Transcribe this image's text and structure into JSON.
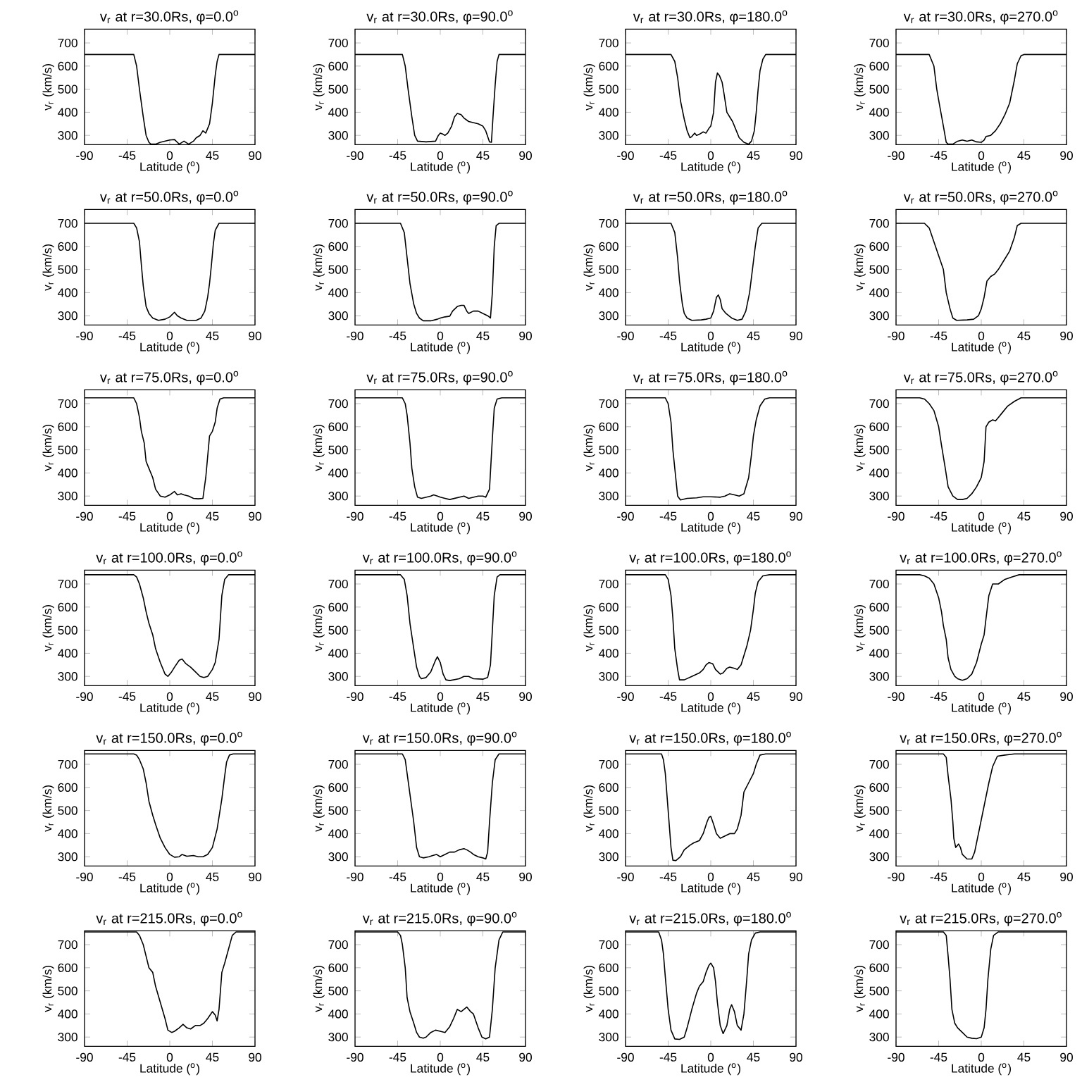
{
  "chart_data": [
    {
      "type": "line",
      "title": "v$_{r}$ at r=30.0Rs, φ=0.0$^{o}$",
      "xlabel": "Latitude ($^{o}$)",
      "ylabel": "v$_{r}$ (km/s)",
      "color": "#000000",
      "xlim": [
        -90,
        90
      ],
      "ylim": [
        260,
        760
      ],
      "xticks": [
        -90,
        -45,
        0,
        45,
        90
      ],
      "yticks": [
        300,
        400,
        500,
        600,
        700
      ],
      "x": [
        -90,
        -38,
        -35,
        -32,
        -28,
        -25,
        -22,
        -20,
        -15,
        -10,
        -5,
        0,
        5,
        8,
        10,
        15,
        20,
        25,
        28,
        32,
        35,
        38,
        40,
        42,
        45,
        48,
        50,
        52,
        90
      ],
      "values": [
        650,
        650,
        600,
        500,
        380,
        300,
        270,
        262,
        262,
        270,
        275,
        280,
        282,
        270,
        262,
        275,
        262,
        275,
        290,
        300,
        320,
        310,
        330,
        350,
        440,
        560,
        620,
        650,
        650
      ]
    },
    {
      "type": "line",
      "title": "v$_{r}$ at r=30.0Rs, φ=90.0$^{o}$",
      "xlabel": "Latitude ($^{o}$)",
      "ylabel": "v$_{r}$ (km/s)",
      "color": "#000000",
      "xlim": [
        -90,
        90
      ],
      "ylim": [
        260,
        760
      ],
      "xticks": [
        -90,
        -45,
        0,
        45,
        90
      ],
      "yticks": [
        300,
        400,
        500,
        600,
        700
      ],
      "x": [
        -90,
        -40,
        -37,
        -34,
        -30,
        -27,
        -24,
        -15,
        -5,
        -2,
        0,
        3,
        5,
        8,
        12,
        15,
        18,
        22,
        25,
        30,
        35,
        40,
        45,
        48,
        52,
        54,
        56,
        58,
        60,
        62,
        90
      ],
      "values": [
        650,
        650,
        600,
        500,
        380,
        300,
        275,
        272,
        275,
        300,
        310,
        305,
        300,
        310,
        340,
        380,
        395,
        390,
        375,
        360,
        355,
        350,
        340,
        320,
        272,
        270,
        400,
        520,
        620,
        650,
        650
      ]
    },
    {
      "type": "line",
      "title": "v$_{r}$ at r=30.0Rs, φ=180.0$^{o}$",
      "xlabel": "Latitude ($^{o}$)",
      "ylabel": "v$_{r}$ (km/s)",
      "color": "#000000",
      "xlim": [
        -90,
        90
      ],
      "ylim": [
        260,
        760
      ],
      "xticks": [
        -90,
        -45,
        0,
        45,
        90
      ],
      "yticks": [
        300,
        400,
        500,
        600,
        700
      ],
      "x": [
        -90,
        -42,
        -38,
        -35,
        -32,
        -28,
        -25,
        -22,
        -20,
        -17,
        -15,
        -12,
        -8,
        -5,
        -2,
        0,
        3,
        5,
        7,
        9,
        12,
        14,
        17,
        20,
        23,
        27,
        30,
        35,
        40,
        43,
        46,
        48,
        50,
        52,
        55,
        58,
        90
      ],
      "values": [
        650,
        650,
        620,
        550,
        450,
        370,
        320,
        290,
        295,
        310,
        300,
        305,
        315,
        310,
        330,
        340,
        400,
        530,
        570,
        560,
        530,
        480,
        400,
        380,
        360,
        320,
        290,
        270,
        262,
        275,
        320,
        400,
        500,
        580,
        630,
        650,
        650
      ]
    },
    {
      "type": "line",
      "title": "v$_{r}$ at r=30.0Rs, φ=270.0$^{o}$",
      "xlabel": "Latitude ($^{o}$)",
      "ylabel": "v$_{r}$ (km/s)",
      "color": "#000000",
      "xlim": [
        -90,
        90
      ],
      "ylim": [
        260,
        760
      ],
      "xticks": [
        -90,
        -45,
        0,
        45,
        90
      ],
      "yticks": [
        300,
        400,
        500,
        600,
        700
      ],
      "x": [
        -90,
        -55,
        -52,
        -50,
        -47,
        -44,
        -40,
        -37,
        -35,
        -30,
        -25,
        -20,
        -15,
        -10,
        -5,
        0,
        3,
        5,
        10,
        15,
        20,
        25,
        30,
        35,
        38,
        42,
        45,
        90
      ],
      "values": [
        650,
        650,
        620,
        600,
        500,
        430,
        340,
        270,
        262,
        262,
        275,
        280,
        275,
        280,
        272,
        270,
        280,
        295,
        300,
        320,
        350,
        390,
        440,
        540,
        610,
        645,
        650,
        650
      ]
    },
    {
      "type": "line",
      "title": "v$_{r}$ at r=50.0Rs, φ=0.0$^{o}$",
      "xlabel": "Latitude ($^{o}$)",
      "ylabel": "v$_{r}$ (km/s)",
      "color": "#000000",
      "xlim": [
        -90,
        90
      ],
      "ylim": [
        260,
        760
      ],
      "xticks": [
        -90,
        -45,
        0,
        45,
        90
      ],
      "yticks": [
        300,
        400,
        500,
        600,
        700
      ],
      "x": [
        -90,
        -38,
        -35,
        -32,
        -30,
        -28,
        -25,
        -22,
        -18,
        -12,
        -5,
        0,
        5,
        8,
        12,
        18,
        28,
        33,
        37,
        40,
        42,
        44,
        46,
        48,
        52,
        90
      ],
      "values": [
        700,
        700,
        680,
        620,
        520,
        430,
        340,
        310,
        290,
        280,
        285,
        295,
        315,
        300,
        290,
        280,
        280,
        290,
        320,
        380,
        440,
        520,
        610,
        670,
        700,
        700
      ]
    },
    {
      "type": "line",
      "title": "v$_{r}$ at r=50.0Rs, φ=90.0$^{o}$",
      "xlabel": "Latitude ($^{o}$)",
      "ylabel": "v$_{r}$ (km/s)",
      "color": "#000000",
      "xlim": [
        -90,
        90
      ],
      "ylim": [
        260,
        760
      ],
      "xticks": [
        -90,
        -45,
        0,
        45,
        90
      ],
      "yticks": [
        300,
        400,
        500,
        600,
        700
      ],
      "x": [
        -90,
        -42,
        -38,
        -35,
        -32,
        -28,
        -25,
        -22,
        -18,
        -10,
        -3,
        0,
        5,
        10,
        13,
        18,
        22,
        25,
        28,
        30,
        35,
        40,
        45,
        50,
        53,
        55,
        57,
        59,
        62,
        90
      ],
      "values": [
        700,
        700,
        660,
        550,
        440,
        350,
        310,
        290,
        278,
        278,
        285,
        290,
        295,
        298,
        320,
        340,
        345,
        345,
        320,
        310,
        320,
        320,
        310,
        300,
        290,
        400,
        600,
        690,
        700,
        700
      ]
    },
    {
      "type": "line",
      "title": "v$_{r}$ at r=50.0Rs, φ=180.0$^{o}$",
      "xlabel": "Latitude ($^{o}$)",
      "ylabel": "v$_{r}$ (km/s)",
      "color": "#000000",
      "xlim": [
        -90,
        90
      ],
      "ylim": [
        260,
        760
      ],
      "xticks": [
        -90,
        -45,
        0,
        45,
        90
      ],
      "yticks": [
        300,
        400,
        500,
        600,
        700
      ],
      "x": [
        -90,
        -42,
        -38,
        -35,
        -33,
        -30,
        -28,
        -25,
        -20,
        -10,
        -5,
        0,
        3,
        6,
        8,
        10,
        12,
        16,
        22,
        28,
        33,
        37,
        41,
        44,
        47,
        50,
        54,
        90
      ],
      "values": [
        700,
        700,
        660,
        550,
        450,
        350,
        310,
        290,
        280,
        282,
        285,
        290,
        320,
        380,
        390,
        370,
        330,
        310,
        290,
        280,
        285,
        320,
        400,
        500,
        600,
        680,
        700,
        700
      ]
    },
    {
      "type": "line",
      "title": "v$_{r}$ at r=50.0Rs, φ=270.0$^{o}$",
      "xlabel": "Latitude ($^{o}$)",
      "ylabel": "v$_{r}$ (km/s)",
      "color": "#000000",
      "xlim": [
        -90,
        90
      ],
      "ylim": [
        260,
        760
      ],
      "xticks": [
        -90,
        -45,
        0,
        45,
        90
      ],
      "yticks": [
        300,
        400,
        500,
        600,
        700
      ],
      "x": [
        -90,
        -60,
        -55,
        -50,
        -45,
        -40,
        -37,
        -33,
        -30,
        -26,
        -15,
        -8,
        -3,
        0,
        3,
        6,
        10,
        14,
        18,
        24,
        30,
        35,
        38,
        42,
        90
      ],
      "values": [
        700,
        700,
        680,
        620,
        560,
        500,
        400,
        330,
        290,
        280,
        282,
        285,
        300,
        330,
        380,
        450,
        470,
        480,
        500,
        540,
        580,
        640,
        690,
        700,
        700
      ]
    },
    {
      "type": "line",
      "title": "v$_{r}$ at r=75.0Rs, φ=0.0$^{o}$",
      "xlabel": "Latitude ($^{o}$)",
      "ylabel": "v$_{r}$ (km/s)",
      "color": "#000000",
      "xlim": [
        -90,
        90
      ],
      "ylim": [
        260,
        760
      ],
      "xticks": [
        -90,
        -45,
        0,
        45,
        90
      ],
      "yticks": [
        300,
        400,
        500,
        600,
        700
      ],
      "x": [
        -90,
        -38,
        -35,
        -32,
        -30,
        -27,
        -25,
        -22,
        -18,
        -15,
        -10,
        -5,
        0,
        5,
        8,
        12,
        15,
        20,
        25,
        30,
        35,
        38,
        40,
        42,
        45,
        48,
        50,
        53,
        57,
        90
      ],
      "values": [
        725,
        725,
        700,
        640,
        580,
        530,
        450,
        420,
        380,
        330,
        300,
        295,
        305,
        320,
        305,
        310,
        305,
        300,
        290,
        288,
        290,
        380,
        470,
        560,
        580,
        620,
        680,
        720,
        725,
        725
      ]
    },
    {
      "type": "line",
      "title": "v$_{r}$ at r=75.0Rs, φ=90.0$^{o}$",
      "xlabel": "Latitude ($^{o}$)",
      "ylabel": "v$_{r}$ (km/s)",
      "color": "#000000",
      "xlim": [
        -90,
        90
      ],
      "ylim": [
        260,
        760
      ],
      "xticks": [
        -90,
        -45,
        0,
        45,
        90
      ],
      "yticks": [
        300,
        400,
        500,
        600,
        700
      ],
      "x": [
        -90,
        -40,
        -37,
        -35,
        -32,
        -30,
        -27,
        -24,
        -20,
        -15,
        -10,
        -7,
        -3,
        0,
        5,
        10,
        15,
        20,
        25,
        30,
        35,
        40,
        45,
        48,
        52,
        55,
        57,
        60,
        65,
        90
      ],
      "values": [
        725,
        725,
        700,
        650,
        530,
        420,
        340,
        295,
        290,
        295,
        300,
        305,
        300,
        295,
        290,
        285,
        290,
        295,
        300,
        290,
        295,
        300,
        300,
        295,
        330,
        550,
        680,
        720,
        725,
        725
      ]
    },
    {
      "type": "line",
      "title": "v$_{r}$ at r=75.0Rs, φ=180.0$^{o}$",
      "xlabel": "Latitude ($^{o}$)",
      "ylabel": "v$_{r}$ (km/s)",
      "color": "#000000",
      "xlim": [
        -90,
        90
      ],
      "ylim": [
        260,
        760
      ],
      "xticks": [
        -90,
        -45,
        0,
        45,
        90
      ],
      "yticks": [
        300,
        400,
        500,
        600,
        700
      ],
      "x": [
        -90,
        -48,
        -45,
        -42,
        -40,
        -37,
        -35,
        -32,
        -25,
        -15,
        -8,
        0,
        10,
        15,
        20,
        25,
        30,
        35,
        40,
        43,
        45,
        48,
        52,
        57,
        62,
        90
      ],
      "values": [
        725,
        725,
        700,
        620,
        500,
        380,
        300,
        283,
        290,
        292,
        297,
        297,
        295,
        300,
        310,
        305,
        300,
        310,
        380,
        480,
        560,
        630,
        690,
        720,
        725,
        725
      ]
    },
    {
      "type": "line",
      "title": "v$_{r}$ at r=75.0Rs, φ=270.0$^{o}$",
      "xlabel": "Latitude ($^{o}$)",
      "ylabel": "v$_{r}$ (km/s)",
      "color": "#000000",
      "xlim": [
        -90,
        90
      ],
      "ylim": [
        260,
        760
      ],
      "xticks": [
        -90,
        -45,
        0,
        45,
        90
      ],
      "yticks": [
        300,
        400,
        500,
        600,
        700
      ],
      "x": [
        -90,
        -65,
        -60,
        -55,
        -50,
        -45,
        -42,
        -38,
        -35,
        -30,
        -25,
        -20,
        -15,
        -10,
        -5,
        0,
        3,
        5,
        8,
        12,
        15,
        18,
        22,
        28,
        35,
        42,
        90
      ],
      "values": [
        725,
        725,
        720,
        700,
        670,
        600,
        520,
        420,
        340,
        300,
        285,
        285,
        290,
        310,
        340,
        380,
        450,
        600,
        620,
        630,
        625,
        640,
        660,
        690,
        710,
        725,
        725
      ]
    },
    {
      "type": "line",
      "title": "v$_{r}$ at r=100.0Rs, φ=0.0$^{o}$",
      "xlabel": "Latitude ($^{o}$)",
      "ylabel": "v$_{r}$ (km/s)",
      "color": "#000000",
      "xlim": [
        -90,
        90
      ],
      "ylim": [
        260,
        760
      ],
      "xticks": [
        -90,
        -45,
        0,
        45,
        90
      ],
      "yticks": [
        300,
        400,
        500,
        600,
        700
      ],
      "x": [
        -90,
        -38,
        -35,
        -32,
        -28,
        -25,
        -22,
        -18,
        -15,
        -10,
        -5,
        -2,
        2,
        5,
        10,
        13,
        17,
        22,
        27,
        32,
        36,
        40,
        45,
        48,
        52,
        55,
        58,
        62,
        90
      ],
      "values": [
        740,
        740,
        730,
        700,
        640,
        580,
        530,
        480,
        420,
        360,
        310,
        300,
        320,
        340,
        370,
        375,
        355,
        340,
        320,
        300,
        295,
        300,
        330,
        360,
        460,
        650,
        720,
        740,
        740
      ]
    },
    {
      "type": "line",
      "title": "v$_{r}$ at r=100.0Rs, φ=90.0$^{o}$",
      "xlabel": "Latitude ($^{o}$)",
      "ylabel": "v$_{r}$ (km/s)",
      "color": "#000000",
      "xlim": [
        -90,
        90
      ],
      "ylim": [
        260,
        760
      ],
      "xticks": [
        -90,
        -45,
        0,
        45,
        90
      ],
      "yticks": [
        300,
        400,
        500,
        600,
        700
      ],
      "x": [
        -90,
        -42,
        -38,
        -35,
        -32,
        -28,
        -25,
        -22,
        -20,
        -15,
        -10,
        -5,
        -3,
        0,
        3,
        6,
        10,
        20,
        25,
        30,
        35,
        45,
        50,
        53,
        55,
        57,
        60,
        63,
        90
      ],
      "values": [
        740,
        740,
        720,
        650,
        530,
        420,
        340,
        300,
        290,
        295,
        320,
        370,
        385,
        360,
        310,
        285,
        282,
        290,
        300,
        300,
        290,
        288,
        295,
        350,
        500,
        650,
        730,
        740,
        740
      ]
    },
    {
      "type": "line",
      "title": "v$_{r}$ at r=100.0Rs, φ=180.0$^{o}$",
      "xlabel": "Latitude ($^{o}$)",
      "ylabel": "v$_{r}$ (km/s)",
      "color": "#000000",
      "xlim": [
        -90,
        90
      ],
      "ylim": [
        260,
        760
      ],
      "xticks": [
        -90,
        -45,
        0,
        45,
        90
      ],
      "yticks": [
        300,
        400,
        500,
        600,
        700
      ],
      "x": [
        -90,
        -48,
        -45,
        -42,
        -40,
        -38,
        -35,
        -33,
        -28,
        -20,
        -12,
        -8,
        -5,
        -2,
        2,
        5,
        10,
        13,
        17,
        20,
        25,
        28,
        32,
        38,
        42,
        45,
        47,
        50,
        55,
        62,
        90
      ],
      "values": [
        740,
        740,
        720,
        650,
        550,
        420,
        330,
        285,
        285,
        300,
        315,
        330,
        350,
        360,
        355,
        330,
        310,
        315,
        335,
        340,
        335,
        330,
        350,
        430,
        500,
        590,
        660,
        710,
        735,
        740,
        740
      ]
    },
    {
      "type": "line",
      "title": "v$_{r}$ at r=100.0Rs, φ=270.0$^{o}$",
      "xlabel": "Latitude ($^{o}$)",
      "ylabel": "v$_{r}$ (km/s)",
      "color": "#000000",
      "xlim": [
        -90,
        90
      ],
      "ylim": [
        260,
        760
      ],
      "xticks": [
        -90,
        -45,
        0,
        45,
        90
      ],
      "yticks": [
        300,
        400,
        500,
        600,
        700
      ],
      "x": [
        -90,
        -65,
        -60,
        -55,
        -50,
        -45,
        -42,
        -40,
        -37,
        -35,
        -32,
        -28,
        -25,
        -20,
        -15,
        -10,
        -5,
        0,
        3,
        5,
        8,
        12,
        18,
        25,
        32,
        40,
        90
      ],
      "values": [
        740,
        740,
        735,
        725,
        700,
        640,
        580,
        520,
        460,
        380,
        330,
        300,
        290,
        283,
        290,
        310,
        360,
        440,
        480,
        550,
        650,
        700,
        700,
        720,
        730,
        740,
        740
      ]
    },
    {
      "type": "line",
      "title": "v$_{r}$ at r=150.0Rs, φ=0.0$^{o}$",
      "xlabel": "Latitude ($^{o}$)",
      "ylabel": "v$_{r}$ (km/s)",
      "color": "#000000",
      "xlim": [
        -90,
        90
      ],
      "ylim": [
        260,
        760
      ],
      "xticks": [
        -90,
        -45,
        0,
        45,
        90
      ],
      "yticks": [
        300,
        400,
        500,
        600,
        700
      ],
      "x": [
        -90,
        -38,
        -35,
        -32,
        -28,
        -25,
        -22,
        -18,
        -15,
        -10,
        -5,
        0,
        5,
        10,
        13,
        18,
        25,
        30,
        35,
        40,
        45,
        50,
        55,
        58,
        60,
        63,
        67,
        90
      ],
      "values": [
        745,
        745,
        740,
        720,
        680,
        620,
        540,
        480,
        440,
        380,
        340,
        310,
        298,
        300,
        310,
        302,
        305,
        300,
        300,
        310,
        340,
        420,
        550,
        650,
        710,
        740,
        745,
        745
      ]
    },
    {
      "type": "line",
      "title": "v$_{r}$ at r=150.0Rs, φ=90.0$^{o}$",
      "xlabel": "Latitude ($^{o}$)",
      "ylabel": "v$_{r}$ (km/s)",
      "color": "#000000",
      "xlim": [
        -90,
        90
      ],
      "ylim": [
        260,
        760
      ],
      "xticks": [
        -90,
        -45,
        0,
        45,
        90
      ],
      "yticks": [
        300,
        400,
        500,
        600,
        700
      ],
      "x": [
        -90,
        -40,
        -37,
        -35,
        -32,
        -28,
        -25,
        -22,
        -18,
        -12,
        -8,
        -4,
        0,
        5,
        10,
        15,
        20,
        25,
        28,
        32,
        35,
        40,
        45,
        48,
        50,
        52,
        55,
        58,
        62,
        90
      ],
      "values": [
        745,
        745,
        720,
        660,
        570,
        450,
        340,
        300,
        295,
        300,
        305,
        310,
        300,
        310,
        320,
        320,
        330,
        335,
        330,
        320,
        310,
        300,
        295,
        290,
        320,
        450,
        620,
        720,
        745,
        745
      ]
    },
    {
      "type": "line",
      "title": "v$_{r}$ at r=150.0Rs, φ=180.0$^{o}$",
      "xlabel": "Latitude ($^{o}$)",
      "ylabel": "v$_{r}$ (km/s)",
      "color": "#000000",
      "xlim": [
        -90,
        90
      ],
      "ylim": [
        260,
        760
      ],
      "xticks": [
        -90,
        -45,
        0,
        45,
        90
      ],
      "yticks": [
        300,
        400,
        500,
        600,
        700
      ],
      "x": [
        -90,
        -52,
        -50,
        -48,
        -45,
        -42,
        -40,
        -37,
        -32,
        -28,
        -22,
        -18,
        -12,
        -8,
        -4,
        -2,
        0,
        3,
        6,
        10,
        15,
        20,
        25,
        28,
        32,
        35,
        40,
        45,
        48,
        52,
        58,
        90
      ],
      "values": [
        745,
        745,
        720,
        660,
        500,
        340,
        285,
        283,
        300,
        330,
        350,
        360,
        370,
        400,
        450,
        470,
        475,
        440,
        400,
        380,
        390,
        400,
        400,
        420,
        480,
        580,
        620,
        660,
        700,
        740,
        745,
        745
      ]
    },
    {
      "type": "line",
      "title": "v$_{r}$ at r=150.0Rs, φ=270.0$^{o}$",
      "xlabel": "Latitude ($^{o}$)",
      "ylabel": "v$_{r}$ (km/s)",
      "color": "#000000",
      "xlim": [
        -90,
        90
      ],
      "ylim": [
        260,
        760
      ],
      "xticks": [
        -90,
        -45,
        0,
        45,
        90
      ],
      "yticks": [
        300,
        400,
        500,
        600,
        700
      ],
      "x": [
        -90,
        -40,
        -37,
        -35,
        -32,
        -30,
        -29,
        -27,
        -24,
        -22,
        -20,
        -15,
        -10,
        -7,
        -4,
        0,
        4,
        8,
        12,
        17,
        25,
        35,
        90
      ],
      "values": [
        745,
        745,
        730,
        650,
        550,
        450,
        380,
        340,
        355,
        340,
        310,
        290,
        290,
        320,
        380,
        460,
        540,
        620,
        690,
        735,
        740,
        745,
        745
      ]
    },
    {
      "type": "line",
      "title": "v$_{r}$ at r=215.0Rs, φ=0.0$^{o}$",
      "xlabel": "Latitude ($^{o}$)",
      "ylabel": "v$_{r}$ (km/s)",
      "color": "#000000",
      "xlim": [
        -90,
        90
      ],
      "ylim": [
        260,
        760
      ],
      "xticks": [
        -90,
        -45,
        0,
        45,
        90
      ],
      "yticks": [
        300,
        400,
        500,
        600,
        700
      ],
      "x": [
        -90,
        -35,
        -32,
        -28,
        -25,
        -22,
        -18,
        -15,
        -10,
        -5,
        -2,
        2,
        5,
        10,
        14,
        18,
        22,
        27,
        32,
        36,
        40,
        45,
        48,
        50,
        52,
        55,
        58,
        62,
        66,
        70,
        90
      ],
      "values": [
        755,
        755,
        740,
        700,
        650,
        600,
        580,
        520,
        450,
        380,
        330,
        320,
        325,
        340,
        355,
        340,
        335,
        350,
        350,
        360,
        380,
        410,
        395,
        370,
        420,
        580,
        620,
        680,
        740,
        755,
        755
      ]
    },
    {
      "type": "line",
      "title": "v$_{r}$ at r=215.0Rs, φ=90.0$^{o}$",
      "xlabel": "Latitude ($^{o}$)",
      "ylabel": "v$_{r}$ (km/s)",
      "color": "#000000",
      "xlim": [
        -90,
        90
      ],
      "ylim": [
        260,
        760
      ],
      "xticks": [
        -90,
        -45,
        0,
        45,
        90
      ],
      "yticks": [
        300,
        400,
        500,
        600,
        700
      ],
      "x": [
        -90,
        -45,
        -42,
        -40,
        -37,
        -35,
        -32,
        -28,
        -25,
        -22,
        -18,
        -15,
        -10,
        -5,
        0,
        5,
        10,
        14,
        18,
        22,
        25,
        28,
        32,
        35,
        40,
        44,
        48,
        52,
        55,
        58,
        62,
        66,
        90
      ],
      "values": [
        755,
        755,
        740,
        700,
        600,
        470,
        410,
        360,
        320,
        300,
        295,
        300,
        320,
        330,
        325,
        320,
        345,
        380,
        420,
        410,
        420,
        430,
        410,
        400,
        340,
        300,
        292,
        300,
        420,
        600,
        720,
        755,
        755
      ]
    },
    {
      "type": "line",
      "title": "v$_{r}$ at r=215.0Rs, φ=180.0$^{o}$",
      "xlabel": "Latitude ($^{o}$)",
      "ylabel": "v$_{r}$ (km/s)",
      "color": "#000000",
      "xlim": [
        -90,
        90
      ],
      "ylim": [
        260,
        760
      ],
      "xticks": [
        -90,
        -45,
        0,
        45,
        90
      ],
      "yticks": [
        300,
        400,
        500,
        600,
        700
      ],
      "x": [
        -90,
        -55,
        -52,
        -50,
        -48,
        -45,
        -42,
        -38,
        -33,
        -28,
        -25,
        -20,
        -15,
        -12,
        -8,
        -5,
        -2,
        0,
        3,
        5,
        7,
        10,
        13,
        17,
        20,
        22,
        25,
        28,
        32,
        35,
        38,
        40,
        43,
        47,
        52,
        90
      ],
      "values": [
        755,
        755,
        720,
        660,
        560,
        420,
        330,
        292,
        290,
        300,
        340,
        420,
        490,
        520,
        540,
        580,
        610,
        620,
        600,
        540,
        450,
        350,
        315,
        350,
        420,
        440,
        410,
        350,
        330,
        400,
        550,
        660,
        720,
        750,
        755,
        755
      ]
    },
    {
      "type": "line",
      "title": "v$_{r}$ at r=215.0Rs, φ=270.0$^{o}$",
      "xlabel": "Latitude ($^{o}$)",
      "ylabel": "v$_{r}$ (km/s)",
      "color": "#000000",
      "xlim": [
        -90,
        90
      ],
      "ylim": [
        260,
        760
      ],
      "xticks": [
        -90,
        -45,
        0,
        45,
        90
      ],
      "yticks": [
        300,
        400,
        500,
        600,
        700
      ],
      "x": [
        -90,
        -40,
        -37,
        -35,
        -33,
        -31,
        -28,
        -25,
        -20,
        -15,
        -10,
        -5,
        0,
        3,
        5,
        7,
        10,
        13,
        18,
        90
      ],
      "values": [
        755,
        755,
        740,
        650,
        550,
        420,
        360,
        340,
        320,
        300,
        295,
        293,
        300,
        340,
        420,
        550,
        680,
        740,
        755,
        755
      ]
    }
  ]
}
